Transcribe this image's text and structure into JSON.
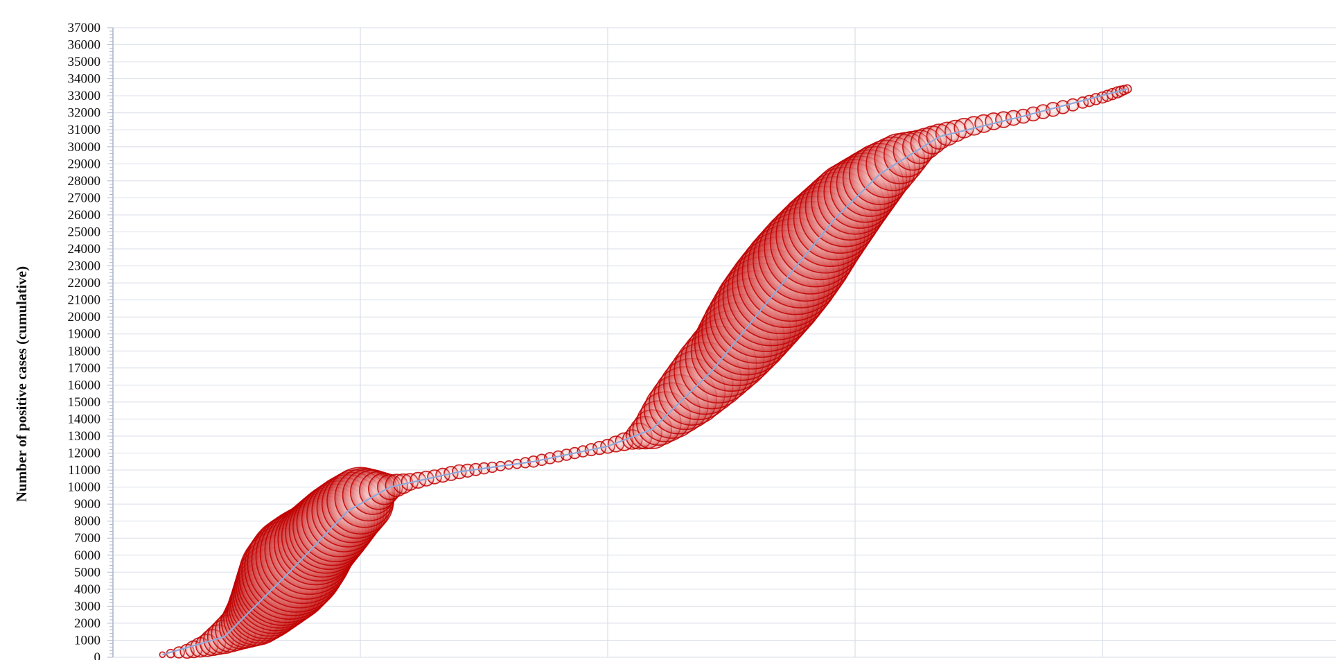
{
  "chart_data": {
    "type": "scatter",
    "subtype": "bubble",
    "ylabel": "Number of positive cases (cumulative)",
    "xlabel": "",
    "title": "",
    "ylim": [
      0,
      37000
    ],
    "ytick_step": 1000,
    "grid": true,
    "legend": "none",
    "vertical_gridlines": 5,
    "colors": {
      "bubble_stroke": "#c00000",
      "bubble_fill": "#e06060",
      "trend_line": "#8fa8d8",
      "grid": "#d9dee7",
      "axis": "#a8b4c8"
    },
    "series": [
      {
        "points": [
          [
            0.2,
            150,
            0.2
          ],
          [
            0.3,
            350,
            0.5
          ],
          [
            0.38,
            700,
            0.8
          ],
          [
            0.45,
            1200,
            1.2
          ],
          [
            0.52,
            1800,
            1.6
          ],
          [
            0.58,
            2500,
            2.2
          ],
          [
            0.62,
            3200,
            2.6
          ],
          [
            0.66,
            4000,
            3.0
          ],
          [
            0.7,
            4800,
            3.4
          ],
          [
            0.74,
            5500,
            3.5
          ],
          [
            0.78,
            6100,
            3.3
          ],
          [
            0.82,
            6700,
            3.0
          ],
          [
            0.86,
            7300,
            2.9
          ],
          [
            0.9,
            7900,
            2.8
          ],
          [
            0.95,
            8600,
            2.6
          ],
          [
            1.0,
            9200,
            2.4
          ],
          [
            1.05,
            9700,
            1.6
          ],
          [
            1.12,
            10000,
            0.9
          ],
          [
            1.2,
            10300,
            0.6
          ],
          [
            1.3,
            10600,
            0.5
          ],
          [
            1.4,
            10900,
            0.5
          ],
          [
            1.5,
            11100,
            0.4
          ],
          [
            1.6,
            11300,
            0.3
          ],
          [
            1.7,
            11500,
            0.4
          ],
          [
            1.8,
            11800,
            0.4
          ],
          [
            1.9,
            12100,
            0.4
          ],
          [
            2.0,
            12400,
            0.5
          ],
          [
            2.1,
            12800,
            0.7
          ],
          [
            2.18,
            13400,
            1.4
          ],
          [
            2.26,
            14500,
            2.0
          ],
          [
            2.34,
            15600,
            2.4
          ],
          [
            2.42,
            16800,
            2.7
          ],
          [
            2.5,
            18000,
            2.9
          ],
          [
            2.56,
            19200,
            3.2
          ],
          [
            2.62,
            20400,
            3.4
          ],
          [
            2.68,
            21500,
            3.5
          ],
          [
            2.74,
            22600,
            3.5
          ],
          [
            2.8,
            23700,
            3.4
          ],
          [
            2.86,
            24800,
            3.2
          ],
          [
            2.92,
            25800,
            3.0
          ],
          [
            2.98,
            26800,
            2.8
          ],
          [
            3.04,
            27600,
            2.5
          ],
          [
            3.1,
            28400,
            2.2
          ],
          [
            3.18,
            29300,
            1.8
          ],
          [
            3.26,
            30000,
            1.2
          ],
          [
            3.34,
            30600,
            0.9
          ],
          [
            3.44,
            31100,
            0.7
          ],
          [
            3.56,
            31500,
            0.6
          ],
          [
            3.68,
            31800,
            0.5
          ],
          [
            3.8,
            32200,
            0.5
          ],
          [
            3.92,
            32600,
            0.4
          ],
          [
            4.0,
            32900,
            0.4
          ],
          [
            4.06,
            33200,
            0.4
          ],
          [
            4.1,
            33400,
            0.3
          ]
        ],
        "trend": [
          [
            0.2,
            150
          ],
          [
            0.45,
            1200
          ],
          [
            0.7,
            4800
          ],
          [
            0.95,
            8600
          ],
          [
            1.12,
            10000
          ],
          [
            1.4,
            10900
          ],
          [
            1.7,
            11500
          ],
          [
            2.0,
            12400
          ],
          [
            2.18,
            13400
          ],
          [
            2.42,
            16800
          ],
          [
            2.68,
            21500
          ],
          [
            2.92,
            25800
          ],
          [
            3.1,
            28400
          ],
          [
            3.34,
            30600
          ],
          [
            3.68,
            31800
          ],
          [
            4.1,
            33400
          ]
        ]
      }
    ]
  }
}
